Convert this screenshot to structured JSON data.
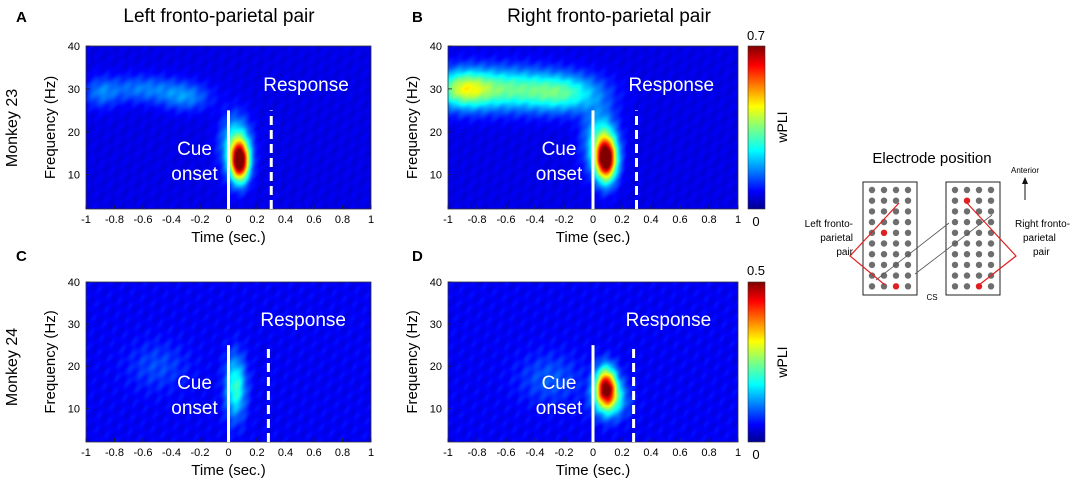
{
  "figure": {
    "column_titles": [
      "Left fronto-parietal pair",
      "Right fronto-parietal pair"
    ],
    "row_labels": [
      "Monkey 23",
      "Monkey 24"
    ],
    "colorbar_label": "wPLI",
    "electrode_panel": {
      "title": "Electrode position",
      "anterior_label": "Anterior",
      "sulcus_label": "CS",
      "left_pair_label": [
        "Left fronto-",
        "parietal",
        "pair"
      ],
      "right_pair_label": [
        "Right fronto-",
        "parietal",
        "pair"
      ]
    }
  },
  "chart_data": [
    {
      "type": "heatmap",
      "panel": "A",
      "title": "Left fronto-parietal pair",
      "row": "Monkey 23",
      "xlabel": "Time (sec.)",
      "ylabel": "Frequency (Hz)",
      "xlim": [
        -1,
        1
      ],
      "ylim": [
        2,
        40
      ],
      "xticks": [
        "-1",
        "-0.8",
        "-0.6",
        "-0.4",
        "-0.2",
        "0",
        "0.2",
        "0.4",
        "0.6",
        "0.8",
        "1"
      ],
      "yticks": [
        "10",
        "20",
        "30",
        "40"
      ],
      "color_range": [
        0,
        0.7
      ],
      "background_wpli": 0.06,
      "blobs": [
        {
          "t": 0.08,
          "f": 13,
          "st": 0.045,
          "sf": 3.2,
          "a": 0.64
        },
        {
          "t": 0.05,
          "f": 17,
          "st": 0.07,
          "sf": 4.5,
          "a": 0.22
        },
        {
          "t": -0.6,
          "f": 30,
          "st": 0.2,
          "sf": 2.2,
          "a": 0.1
        },
        {
          "t": -0.3,
          "f": 28,
          "st": 0.12,
          "sf": 2.2,
          "a": 0.1
        },
        {
          "t": -0.9,
          "f": 29,
          "st": 0.08,
          "sf": 2.5,
          "a": 0.08
        }
      ],
      "annotations": {
        "cue_time": 0,
        "cue_label": [
          "Cue",
          "onset"
        ],
        "response_time": 0.3,
        "response_label": "Response"
      }
    },
    {
      "type": "heatmap",
      "panel": "B",
      "title": "Right fronto-parietal pair",
      "row": "Monkey 23",
      "xlabel": "Time (sec.)",
      "ylabel": "Frequency (Hz)",
      "xlim": [
        -1,
        1
      ],
      "ylim": [
        2,
        40
      ],
      "xticks": [
        "-1",
        "-0.8",
        "-0.6",
        "-0.4",
        "-0.2",
        "0",
        "0.2",
        "0.4",
        "0.6",
        "0.8",
        "1"
      ],
      "yticks": [
        "10",
        "20",
        "30",
        "40"
      ],
      "color_range": [
        0,
        0.7
      ],
      "colorbar_ticks": [
        "0",
        "0.7"
      ],
      "background_wpli": 0.06,
      "blobs": [
        {
          "t": 0.09,
          "f": 13.5,
          "st": 0.05,
          "sf": 3.5,
          "a": 0.66
        },
        {
          "t": 0.05,
          "f": 18,
          "st": 0.08,
          "sf": 5,
          "a": 0.2
        },
        {
          "t": -0.65,
          "f": 30,
          "st": 0.28,
          "sf": 3.3,
          "a": 0.26
        },
        {
          "t": -0.2,
          "f": 29,
          "st": 0.18,
          "sf": 3,
          "a": 0.2
        },
        {
          "t": -0.9,
          "f": 30,
          "st": 0.12,
          "sf": 3,
          "a": 0.2
        }
      ],
      "annotations": {
        "cue_time": 0,
        "cue_label": [
          "Cue",
          "onset"
        ],
        "response_time": 0.3,
        "response_label": "Response"
      }
    },
    {
      "type": "heatmap",
      "panel": "C",
      "title": "Left fronto-parietal pair",
      "row": "Monkey 24",
      "xlabel": "Time (sec.)",
      "ylabel": "Frequency (Hz)",
      "xlim": [
        -1,
        1
      ],
      "ylim": [
        2,
        40
      ],
      "xticks": [
        "-1",
        "-0.8",
        "-0.6",
        "-0.4",
        "-0.2",
        "0",
        "0.2",
        "0.4",
        "0.6",
        "0.8",
        "1"
      ],
      "yticks": [
        "10",
        "20",
        "30",
        "40"
      ],
      "color_range": [
        0,
        0.5
      ],
      "background_wpli": 0.05,
      "blobs": [
        {
          "t": 0.05,
          "f": 15,
          "st": 0.05,
          "sf": 5,
          "a": 0.16
        },
        {
          "t": -0.5,
          "f": 20,
          "st": 0.15,
          "sf": 4,
          "a": 0.04
        }
      ],
      "annotations": {
        "cue_time": 0,
        "cue_label": [
          "Cue",
          "onset"
        ],
        "response_time": 0.28,
        "response_label": "Response"
      }
    },
    {
      "type": "heatmap",
      "panel": "D",
      "title": "Right fronto-parietal pair",
      "row": "Monkey 24",
      "xlabel": "Time (sec.)",
      "ylabel": "Frequency (Hz)",
      "xlim": [
        -1,
        1
      ],
      "ylim": [
        2,
        40
      ],
      "xticks": [
        "-1",
        "-0.8",
        "-0.6",
        "-0.4",
        "-0.2",
        "0",
        "0.2",
        "0.4",
        "0.6",
        "0.8",
        "1"
      ],
      "yticks": [
        "10",
        "20",
        "30",
        "40"
      ],
      "color_range": [
        0,
        0.5
      ],
      "colorbar_ticks": [
        "0",
        "0.5"
      ],
      "background_wpli": 0.05,
      "blobs": [
        {
          "t": 0.09,
          "f": 15,
          "st": 0.05,
          "sf": 3.2,
          "a": 0.4
        },
        {
          "t": 0.12,
          "f": 12,
          "st": 0.08,
          "sf": 3,
          "a": 0.14
        },
        {
          "t": -0.3,
          "f": 17,
          "st": 0.15,
          "sf": 4,
          "a": 0.05
        }
      ],
      "annotations": {
        "cue_time": 0,
        "cue_label": [
          "Cue",
          "onset"
        ],
        "response_time": 0.28,
        "response_label": "Response"
      }
    }
  ]
}
